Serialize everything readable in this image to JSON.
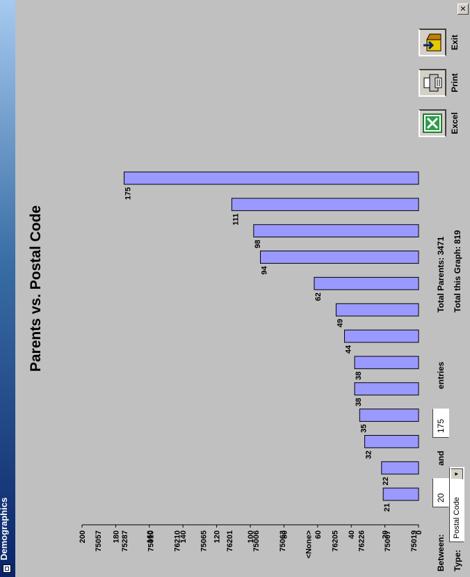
{
  "window": {
    "title": "Demographics",
    "close_glyph": "×"
  },
  "chart_data": {
    "type": "bar",
    "title": "Parents vs. Postal Code",
    "categories": [
      "75057",
      "75287",
      "75010",
      "76210",
      "75065",
      "76201",
      "75006",
      "75063",
      "<None>",
      "76205",
      "76226",
      "75007",
      "75019"
    ],
    "values": [
      21,
      22,
      32,
      35,
      38,
      38,
      44,
      49,
      62,
      94,
      98,
      111,
      175
    ],
    "ylim": [
      0,
      200
    ],
    "yticks": [
      0,
      20,
      40,
      60,
      80,
      100,
      120,
      140,
      160,
      180,
      200
    ],
    "bar_color": "#9999ff",
    "xlabel": "",
    "ylabel": ""
  },
  "filter": {
    "between_label": "Between:",
    "min_value": "20",
    "and_label": "and",
    "max_value": "175",
    "entries_label": "entries",
    "type_label": "Type:",
    "type_value": "Postal Code"
  },
  "totals": {
    "parents": "Total Parents: 3471",
    "graph": "Total this Graph: 819"
  },
  "toolbar": {
    "excel_label": "Excel",
    "print_label": "Print",
    "exit_label": "Exit"
  }
}
